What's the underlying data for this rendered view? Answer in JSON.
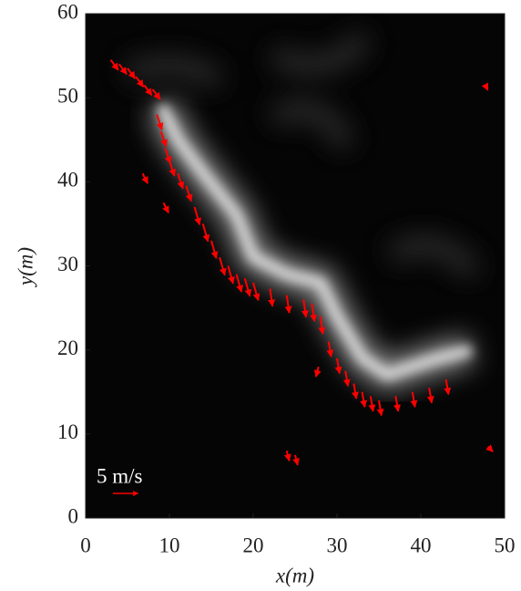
{
  "chart_data": {
    "type": "quiver",
    "x_label": "x(m)",
    "y_label": "y(m)",
    "xlim": [
      0,
      50
    ],
    "ylim": [
      0,
      60
    ],
    "xticks": [
      0,
      10,
      20,
      30,
      40,
      50
    ],
    "yticks": [
      0,
      10,
      20,
      30,
      40,
      50,
      60
    ],
    "color": "#ff0000",
    "reference": {
      "value": 5,
      "label": "5 m/s"
    },
    "x": [
      3,
      4,
      5,
      6,
      7,
      8,
      8.5,
      9,
      9.5,
      10,
      11,
      12,
      13,
      14,
      15,
      16,
      17,
      18,
      19,
      20,
      22,
      24,
      26,
      27,
      28,
      29,
      30,
      31,
      32,
      33,
      34,
      35,
      37,
      39,
      41,
      43,
      6.8,
      9.3,
      24,
      25,
      48,
      47.7,
      27.8
    ],
    "y": [
      54.5,
      54,
      53.5,
      52.5,
      51.5,
      51,
      48,
      46,
      44,
      42.5,
      41,
      39.5,
      37,
      35,
      33,
      31,
      30,
      29,
      28.5,
      28,
      27.3,
      26.5,
      26,
      25.5,
      24,
      21,
      19,
      17.5,
      16,
      15,
      14.5,
      14,
      14.5,
      15,
      15.5,
      16.5,
      41,
      37.5,
      8,
      7.5,
      8.5,
      51.5,
      18
    ],
    "u": [
      1.5,
      1.5,
      1.5,
      1.5,
      1.5,
      1.5,
      1,
      1,
      1,
      1,
      1,
      1,
      1,
      1,
      1,
      1,
      1,
      1,
      1,
      1,
      0.5,
      0.5,
      0.5,
      0.5,
      0.5,
      0.5,
      0.5,
      0.5,
      0.5,
      0.5,
      0.5,
      0.5,
      0.5,
      0.5,
      0.5,
      0.5,
      1,
      1,
      0.5,
      0.5,
      1,
      0.5,
      -0.5
    ],
    "v": [
      -2,
      -2,
      -2,
      -2,
      -2,
      -2,
      -3,
      -3,
      -3,
      -3,
      -3,
      -3,
      -3.5,
      -3.5,
      -3.5,
      -3.5,
      -3.5,
      -3.5,
      -3.5,
      -3.5,
      -3.5,
      -3.5,
      -3.5,
      -3.5,
      -3.5,
      -3,
      -3,
      -3,
      -3,
      -3,
      -3,
      -3,
      -3,
      -3,
      -3,
      -3,
      -2,
      -2,
      -2,
      -2,
      -1,
      -1,
      -2
    ]
  }
}
